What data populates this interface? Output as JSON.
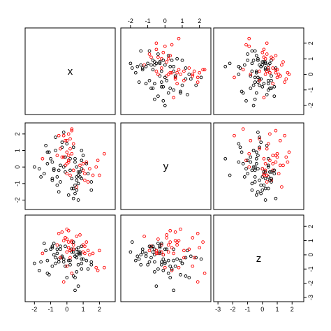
{
  "chart_data": {
    "type": "scatter",
    "kind": "scatterplot-matrix",
    "variables": [
      "x",
      "y",
      "z"
    ],
    "colors": {
      "group_a": "#000000",
      "group_b": "#ff0000"
    },
    "grid": false,
    "ranges": {
      "x": [
        -2.4,
        2.8
      ],
      "y": [
        -2.4,
        2.5
      ],
      "z": [
        -3.1,
        2.6
      ]
    },
    "ticks": {
      "x": [
        -2,
        -1,
        0,
        1,
        2
      ],
      "y": [
        -2,
        -1,
        0,
        1,
        2
      ],
      "z": [
        -3,
        -2,
        -1,
        0,
        1,
        2
      ]
    },
    "tick_labels": {
      "x": [
        "-2",
        "-1",
        "0",
        "1",
        "2"
      ],
      "y": [
        "-2",
        "-1",
        "0",
        "1",
        "2"
      ],
      "z": [
        "-3",
        "-2",
        "-1",
        "0",
        "1",
        "2"
      ]
    },
    "axes": {
      "bottom": [
        {
          "col": 0,
          "var": "x"
        },
        {
          "col": 2,
          "var": "z"
        }
      ],
      "top": [
        {
          "col": 1,
          "var": "y"
        }
      ],
      "left": [
        {
          "row": 1,
          "var": "y"
        }
      ],
      "right": [
        {
          "row": 0,
          "var": "x"
        },
        {
          "row": 2,
          "var": "z"
        }
      ]
    },
    "points": {
      "x": [
        0.2,
        -0.5,
        1.1,
        -1.2,
        0.8,
        0.3,
        -0.8,
        1.5,
        0.0,
        -0.3,
        0.6,
        1.9,
        -1.6,
        0.4,
        -0.1,
        1.0,
        -0.6,
        0.7,
        0.1,
        -0.9,
        1.3,
        -0.2,
        0.5,
        0.9,
        -1.4,
        0.0,
        0.3,
        -0.4,
        1.2,
        0.6,
        -0.7,
        2.3,
        -0.1,
        0.8,
        -1.1,
        0.2,
        0.4,
        -0.5,
        1.6,
        0.1,
        -0.2,
        0.7,
        -0.9,
        0.5,
        1.0,
        -0.3,
        0.0,
        -2.0,
        0.3,
        0.9,
        -0.6,
        1.4,
        0.2,
        -0.4,
        0.6,
        -1.3,
        0.8,
        0.1,
        -0.1,
        1.1,
        -0.8,
        0.4,
        0.0,
        0.7,
        -0.5,
        1.8,
        0.3,
        -1.0,
        0.5,
        -0.2,
        0.9,
        0.2,
        -0.7,
        1.2,
        0.6,
        -1.7,
        0.1,
        0.4,
        -0.3,
        1.5,
        0.0,
        0.8,
        -0.6,
        0.3,
        1.0,
        -1.2,
        0.6,
        -0.1,
        0.2,
        2.0,
        -0.4,
        0.5,
        -0.9,
        0.7,
        0.1,
        -0.2,
        1.3,
        0.4,
        -1.5,
        0.9
      ],
      "y": [
        0.5,
        1.9,
        -0.8,
        0.2,
        -0.3,
        2.2,
        -0.1,
        -1.4,
        0.9,
        1.2,
        0.0,
        0.4,
        -0.6,
        -0.2,
        1.6,
        0.7,
        -1.1,
        -0.5,
        2.0,
        0.3,
        -0.9,
        0.6,
        -1.6,
        1.0,
        -0.4,
        1.4,
        -0.7,
        0.1,
        0.2,
        -1.2,
        1.8,
        0.8,
        -0.3,
        -0.6,
        0.9,
        1.1,
        -1.9,
        -0.2,
        -0.5,
        0.3,
        2.1,
        -1.0,
        -0.8,
        0.5,
        -0.2,
        1.5,
        -0.4,
        0.0,
        -1.3,
        0.4,
        0.7,
        -0.1,
        1.7,
        -0.9,
        -0.6,
        1.3,
        0.1,
        -1.7,
        0.6,
        -0.4,
        -0.2,
        1.2,
        0.2,
        -0.3,
        -1.5,
        0.0,
        0.8,
        0.5,
        -1.1,
        1.9,
        -0.7,
        -0.5,
        1.0,
        0.3,
        -0.8,
        -0.1,
        0.4,
        -1.3,
        0.6,
        -0.9,
        1.6,
        -0.3,
        -0.6,
        2.3,
        0.2,
        0.9,
        -1.4,
        0.1,
        -0.2,
        -0.5,
        1.1,
        0.3,
        -0.7,
        -2.0,
        0.7,
        0.0,
        -0.4,
        1.4,
        0.5,
        -0.1
      ],
      "z": [
        -0.4,
        1.5,
        0.6,
        -1.3,
        0.2,
        0.9,
        0.0,
        -0.7,
        1.8,
        -0.2,
        0.4,
        -1.1,
        -0.5,
        0.7,
        1.2,
        -0.3,
        0.1,
        -2.2,
        0.5,
        -0.8,
        0.3,
        1.0,
        -0.1,
        -0.6,
        0.8,
        -1.6,
        0.2,
        0.4,
        -0.4,
        1.3,
        -0.2,
        -0.9,
        0.6,
        0.0,
        -1.4,
        0.3,
        0.9,
        -0.5,
        0.1,
        1.7,
        -0.3,
        -0.7,
        0.5,
        -2.5,
        0.2,
        -0.1,
        1.1,
        -0.6,
        0.4,
        -1.0,
        0.7,
        0.0,
        -0.2,
        0.6,
        -1.2,
        0.3,
        1.4,
        -0.4,
        -0.8,
        0.1,
        0.8,
        -1.5,
        0.2,
        0.5,
        -0.3,
        -0.9,
        1.0,
        0.4,
        -0.1,
        -1.9,
        0.6,
        0.3,
        -0.6,
        0.9,
        -0.2,
        -1.1,
        0.5,
        0.2,
        1.6,
        -0.5,
        -0.8,
        0.1,
        0.4,
        -1.3,
        0.7,
        -0.4,
        0.0,
        1.2,
        -0.7,
        0.3,
        -0.2,
        -1.6,
        0.6,
        0.2,
        0.9,
        -0.5,
        -1.0,
        0.4,
        0.1,
        -0.3
      ],
      "group": [
        0,
        1,
        1,
        0,
        0,
        1,
        0,
        0,
        1,
        0,
        0,
        1,
        0,
        1,
        1,
        0,
        0,
        0,
        1,
        0,
        1,
        1,
        0,
        0,
        0,
        0,
        0,
        0,
        0,
        1,
        0,
        1,
        0,
        0,
        0,
        1,
        0,
        0,
        1,
        1,
        0,
        0,
        0,
        0,
        1,
        0,
        1,
        0,
        0,
        0,
        1,
        1,
        1,
        0,
        0,
        0,
        1,
        0,
        0,
        1,
        0,
        0,
        1,
        0,
        0,
        1,
        1,
        0,
        0,
        1,
        0,
        1,
        0,
        1,
        0,
        0,
        1,
        0,
        1,
        0,
        1,
        0,
        0,
        1,
        1,
        0,
        0,
        1,
        0,
        1,
        1,
        0,
        0,
        0,
        1,
        0,
        0,
        1,
        1,
        0
      ]
    }
  }
}
